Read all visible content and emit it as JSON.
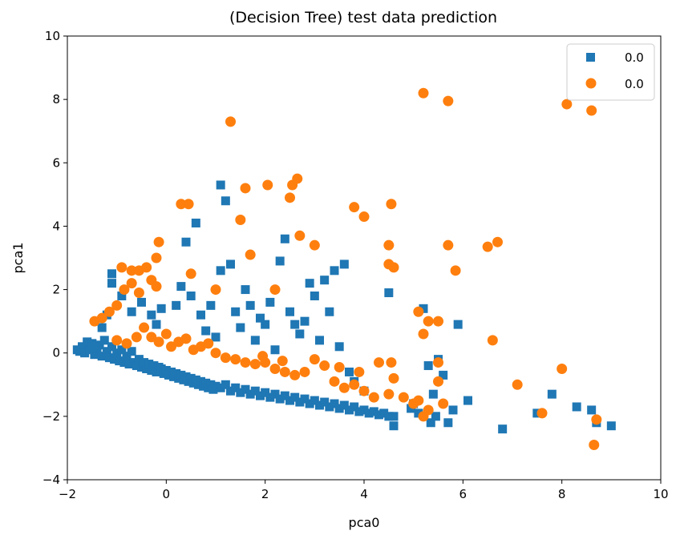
{
  "chart_data": {
    "type": "scatter",
    "title": "(Decision Tree) test data prediction",
    "xlabel": "pca0",
    "ylabel": "pca1",
    "xlim": [
      -2,
      10
    ],
    "ylim": [
      -4,
      10
    ],
    "xticks": [
      -2,
      0,
      2,
      4,
      6,
      8,
      10
    ],
    "yticks": [
      -4,
      -2,
      0,
      2,
      4,
      6,
      8,
      10
    ],
    "xtick_labels": [
      "−2",
      "0",
      "2",
      "4",
      "6",
      "8",
      "10"
    ],
    "ytick_labels": [
      "−4",
      "−2",
      "0",
      "2",
      "4",
      "6",
      "8",
      "10"
    ],
    "grid": false,
    "legend_position": "top-right",
    "series": [
      {
        "name": "0.0",
        "marker": "square",
        "color": "#1f77b4",
        "points": [
          [
            -1.8,
            0.1
          ],
          [
            -1.75,
            0.05
          ],
          [
            -1.7,
            0.2
          ],
          [
            -1.65,
            0.0
          ],
          [
            -1.6,
            0.35
          ],
          [
            -1.55,
            0.1
          ],
          [
            -1.5,
            0.3
          ],
          [
            -1.45,
            -0.05
          ],
          [
            -1.4,
            0.15
          ],
          [
            -1.35,
            0.25
          ],
          [
            -1.3,
            -0.1
          ],
          [
            -1.25,
            0.4
          ],
          [
            -1.2,
            0.05
          ],
          [
            -1.15,
            -0.15
          ],
          [
            -1.1,
            0.2
          ],
          [
            -1.05,
            -0.2
          ],
          [
            -1.0,
            0.0
          ],
          [
            -0.95,
            -0.25
          ],
          [
            -0.9,
            0.1
          ],
          [
            -0.85,
            -0.3
          ],
          [
            -0.8,
            -0.1
          ],
          [
            -0.75,
            -0.35
          ],
          [
            -0.7,
            0.05
          ],
          [
            -0.65,
            -0.3
          ],
          [
            -0.6,
            -0.4
          ],
          [
            -0.55,
            -0.2
          ],
          [
            -0.5,
            -0.45
          ],
          [
            -0.45,
            -0.3
          ],
          [
            -0.4,
            -0.5
          ],
          [
            -0.35,
            -0.35
          ],
          [
            -0.3,
            -0.55
          ],
          [
            -0.25,
            -0.4
          ],
          [
            -0.2,
            -0.6
          ],
          [
            -0.15,
            -0.45
          ],
          [
            -0.1,
            -0.5
          ],
          [
            -0.05,
            -0.65
          ],
          [
            0.0,
            -0.55
          ],
          [
            0.05,
            -0.7
          ],
          [
            0.1,
            -0.6
          ],
          [
            0.15,
            -0.75
          ],
          [
            0.2,
            -0.65
          ],
          [
            0.25,
            -0.8
          ],
          [
            0.3,
            -0.7
          ],
          [
            0.35,
            -0.85
          ],
          [
            0.4,
            -0.75
          ],
          [
            0.45,
            -0.9
          ],
          [
            0.5,
            -0.8
          ],
          [
            0.55,
            -0.95
          ],
          [
            0.6,
            -0.85
          ],
          [
            0.65,
            -1.0
          ],
          [
            0.7,
            -0.9
          ],
          [
            0.75,
            -1.05
          ],
          [
            0.8,
            -0.95
          ],
          [
            0.85,
            -1.1
          ],
          [
            0.9,
            -1.0
          ],
          [
            0.95,
            -1.15
          ],
          [
            1.0,
            -1.05
          ],
          [
            1.1,
            -1.1
          ],
          [
            1.2,
            -1.0
          ],
          [
            1.3,
            -1.2
          ],
          [
            1.4,
            -1.1
          ],
          [
            1.5,
            -1.25
          ],
          [
            1.6,
            -1.15
          ],
          [
            1.7,
            -1.3
          ],
          [
            1.8,
            -1.2
          ],
          [
            1.9,
            -1.35
          ],
          [
            2.0,
            -1.25
          ],
          [
            2.1,
            -1.4
          ],
          [
            2.2,
            -1.3
          ],
          [
            2.3,
            -1.45
          ],
          [
            2.4,
            -1.35
          ],
          [
            2.5,
            -1.5
          ],
          [
            2.6,
            -1.4
          ],
          [
            2.7,
            -1.55
          ],
          [
            2.8,
            -1.45
          ],
          [
            2.9,
            -1.6
          ],
          [
            3.0,
            -1.5
          ],
          [
            3.1,
            -1.65
          ],
          [
            3.2,
            -1.55
          ],
          [
            3.3,
            -1.7
          ],
          [
            3.4,
            -1.6
          ],
          [
            3.5,
            -1.75
          ],
          [
            3.6,
            -1.65
          ],
          [
            3.7,
            -1.8
          ],
          [
            3.8,
            -1.7
          ],
          [
            3.9,
            -1.85
          ],
          [
            4.0,
            -1.8
          ],
          [
            4.1,
            -1.9
          ],
          [
            4.2,
            -1.85
          ],
          [
            4.3,
            -1.95
          ],
          [
            4.4,
            -1.9
          ],
          [
            4.5,
            -2.0
          ],
          [
            4.6,
            -2.3
          ],
          [
            -1.1,
            2.5
          ],
          [
            -1.1,
            2.2
          ],
          [
            -1.3,
            0.8
          ],
          [
            -1.2,
            1.2
          ],
          [
            -0.9,
            1.8
          ],
          [
            -0.7,
            1.3
          ],
          [
            -0.5,
            1.6
          ],
          [
            -0.3,
            1.2
          ],
          [
            -0.2,
            0.9
          ],
          [
            -0.1,
            1.4
          ],
          [
            0.2,
            1.5
          ],
          [
            0.3,
            2.1
          ],
          [
            0.4,
            3.5
          ],
          [
            0.5,
            1.8
          ],
          [
            0.6,
            4.1
          ],
          [
            0.7,
            1.2
          ],
          [
            0.8,
            0.7
          ],
          [
            0.9,
            1.5
          ],
          [
            1.0,
            0.5
          ],
          [
            1.1,
            2.6
          ],
          [
            1.1,
            5.3
          ],
          [
            1.2,
            4.8
          ],
          [
            1.3,
            2.8
          ],
          [
            1.4,
            1.3
          ],
          [
            1.5,
            0.8
          ],
          [
            1.6,
            2.0
          ],
          [
            1.7,
            1.5
          ],
          [
            1.8,
            0.4
          ],
          [
            1.9,
            1.1
          ],
          [
            2.0,
            0.9
          ],
          [
            2.1,
            1.6
          ],
          [
            2.2,
            0.1
          ],
          [
            2.3,
            2.9
          ],
          [
            2.4,
            3.6
          ],
          [
            2.5,
            1.3
          ],
          [
            2.6,
            0.9
          ],
          [
            2.7,
            0.6
          ],
          [
            2.8,
            1.0
          ],
          [
            2.9,
            2.2
          ],
          [
            3.0,
            1.8
          ],
          [
            3.1,
            0.4
          ],
          [
            3.2,
            2.3
          ],
          [
            3.3,
            1.3
          ],
          [
            3.4,
            2.6
          ],
          [
            3.5,
            0.2
          ],
          [
            3.6,
            2.8
          ],
          [
            3.7,
            -0.6
          ],
          [
            3.8,
            -0.9
          ],
          [
            4.0,
            -1.2
          ],
          [
            4.5,
            1.9
          ],
          [
            4.6,
            -2.0
          ],
          [
            5.2,
            1.4
          ],
          [
            5.3,
            -0.4
          ],
          [
            5.4,
            -1.3
          ],
          [
            5.5,
            -0.2
          ],
          [
            5.6,
            -0.7
          ],
          [
            5.7,
            -2.2
          ],
          [
            5.8,
            -1.8
          ],
          [
            5.9,
            0.9
          ],
          [
            6.1,
            -1.5
          ],
          [
            6.8,
            -2.4
          ],
          [
            7.5,
            -1.9
          ],
          [
            7.8,
            -1.3
          ],
          [
            8.3,
            -1.7
          ],
          [
            8.6,
            -1.8
          ],
          [
            8.7,
            -2.2
          ],
          [
            9.0,
            -2.3
          ],
          [
            5.0,
            -1.6
          ],
          [
            5.1,
            -1.9
          ],
          [
            5.35,
            -2.2
          ],
          [
            5.45,
            -2.0
          ],
          [
            4.95,
            -1.75
          ]
        ]
      },
      {
        "name": "0.0",
        "marker": "circle",
        "color": "#ff7f0e",
        "points": [
          [
            -1.45,
            1.0
          ],
          [
            -1.3,
            1.1
          ],
          [
            -1.15,
            1.3
          ],
          [
            -1.0,
            1.5
          ],
          [
            -0.85,
            2.0
          ],
          [
            -0.9,
            2.7
          ],
          [
            -0.7,
            2.6
          ],
          [
            -0.55,
            2.6
          ],
          [
            -0.4,
            2.7
          ],
          [
            -0.3,
            2.3
          ],
          [
            -0.2,
            2.1
          ],
          [
            -0.7,
            2.2
          ],
          [
            -0.55,
            1.9
          ],
          [
            -1.0,
            0.4
          ],
          [
            -0.8,
            0.3
          ],
          [
            -0.6,
            0.5
          ],
          [
            -0.45,
            0.8
          ],
          [
            -0.3,
            0.5
          ],
          [
            -0.15,
            0.35
          ],
          [
            0.0,
            0.6
          ],
          [
            0.1,
            0.2
          ],
          [
            0.25,
            0.35
          ],
          [
            0.4,
            0.45
          ],
          [
            0.55,
            0.1
          ],
          [
            0.7,
            0.2
          ],
          [
            0.85,
            0.3
          ],
          [
            1.0,
            0.0
          ],
          [
            1.2,
            -0.15
          ],
          [
            1.4,
            -0.2
          ],
          [
            1.6,
            -0.3
          ],
          [
            1.8,
            -0.35
          ],
          [
            2.0,
            -0.3
          ],
          [
            2.2,
            -0.5
          ],
          [
            2.4,
            -0.6
          ],
          [
            2.6,
            -0.7
          ],
          [
            2.8,
            -0.6
          ],
          [
            3.0,
            -0.2
          ],
          [
            3.2,
            -0.4
          ],
          [
            3.4,
            -0.9
          ],
          [
            3.6,
            -1.1
          ],
          [
            3.8,
            -1.0
          ],
          [
            4.0,
            -1.2
          ],
          [
            4.2,
            -1.4
          ],
          [
            4.5,
            -1.3
          ],
          [
            -0.15,
            3.5
          ],
          [
            -0.2,
            3.0
          ],
          [
            0.3,
            4.7
          ],
          [
            0.45,
            4.7
          ],
          [
            0.5,
            2.5
          ],
          [
            1.0,
            2.0
          ],
          [
            1.3,
            7.3
          ],
          [
            1.5,
            4.2
          ],
          [
            1.6,
            5.2
          ],
          [
            1.7,
            3.1
          ],
          [
            2.05,
            5.3
          ],
          [
            2.2,
            2.0
          ],
          [
            2.5,
            4.9
          ],
          [
            2.55,
            5.3
          ],
          [
            2.65,
            5.5
          ],
          [
            2.7,
            3.7
          ],
          [
            3.0,
            3.4
          ],
          [
            3.8,
            4.6
          ],
          [
            4.0,
            4.3
          ],
          [
            4.55,
            4.7
          ],
          [
            4.5,
            3.4
          ],
          [
            4.5,
            2.8
          ],
          [
            4.6,
            2.7
          ],
          [
            5.2,
            8.2
          ],
          [
            5.7,
            7.95
          ],
          [
            5.7,
            3.4
          ],
          [
            5.85,
            2.6
          ],
          [
            6.5,
            3.35
          ],
          [
            6.7,
            3.5
          ],
          [
            5.1,
            1.3
          ],
          [
            5.2,
            0.6
          ],
          [
            5.3,
            1.0
          ],
          [
            5.5,
            1.0
          ],
          [
            5.5,
            -0.3
          ],
          [
            5.5,
            -0.9
          ],
          [
            5.6,
            -1.6
          ],
          [
            6.6,
            0.4
          ],
          [
            7.1,
            -1.0
          ],
          [
            7.6,
            -1.9
          ],
          [
            8.0,
            -0.5
          ],
          [
            8.1,
            7.85
          ],
          [
            8.6,
            7.65
          ],
          [
            8.7,
            -2.1
          ],
          [
            8.65,
            -2.9
          ],
          [
            5.0,
            -1.6
          ],
          [
            5.1,
            -1.5
          ],
          [
            5.2,
            -2.0
          ],
          [
            5.3,
            -1.8
          ],
          [
            4.8,
            -1.4
          ],
          [
            4.6,
            -0.8
          ],
          [
            4.3,
            -0.3
          ],
          [
            4.55,
            -0.3
          ],
          [
            3.9,
            -0.6
          ],
          [
            3.5,
            -0.45
          ],
          [
            2.35,
            -0.25
          ],
          [
            1.95,
            -0.1
          ]
        ]
      }
    ]
  }
}
